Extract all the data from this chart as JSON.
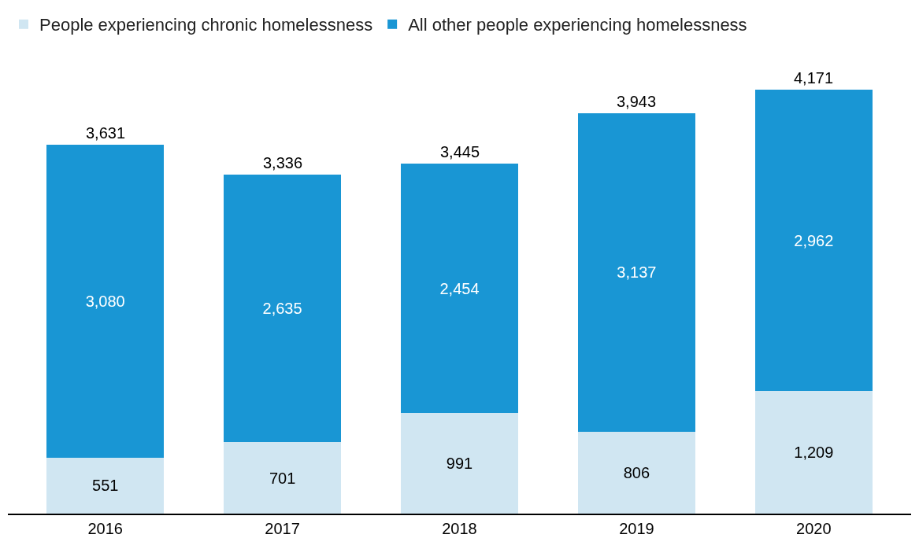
{
  "chart_data": {
    "type": "bar",
    "stacked": true,
    "categories": [
      "2016",
      "2017",
      "2018",
      "2019",
      "2020"
    ],
    "series": [
      {
        "name": "People experiencing chronic homelessness",
        "color": "#d0e6f2",
        "values": [
          551,
          701,
          991,
          806,
          1209
        ],
        "value_labels": [
          "551",
          "701",
          "991",
          "806",
          "1,209"
        ]
      },
      {
        "name": "All other people experiencing homelessness",
        "color": "#1996d4",
        "values": [
          3080,
          2635,
          2454,
          3137,
          2962
        ],
        "value_labels": [
          "3,080",
          "2,635",
          "2,454",
          "3,137",
          "2,962"
        ]
      }
    ],
    "totals": [
      "3,631",
      "3,336",
      "3,445",
      "3,943",
      "4,171"
    ],
    "legend": "top left",
    "tick_labels": "x"
  }
}
